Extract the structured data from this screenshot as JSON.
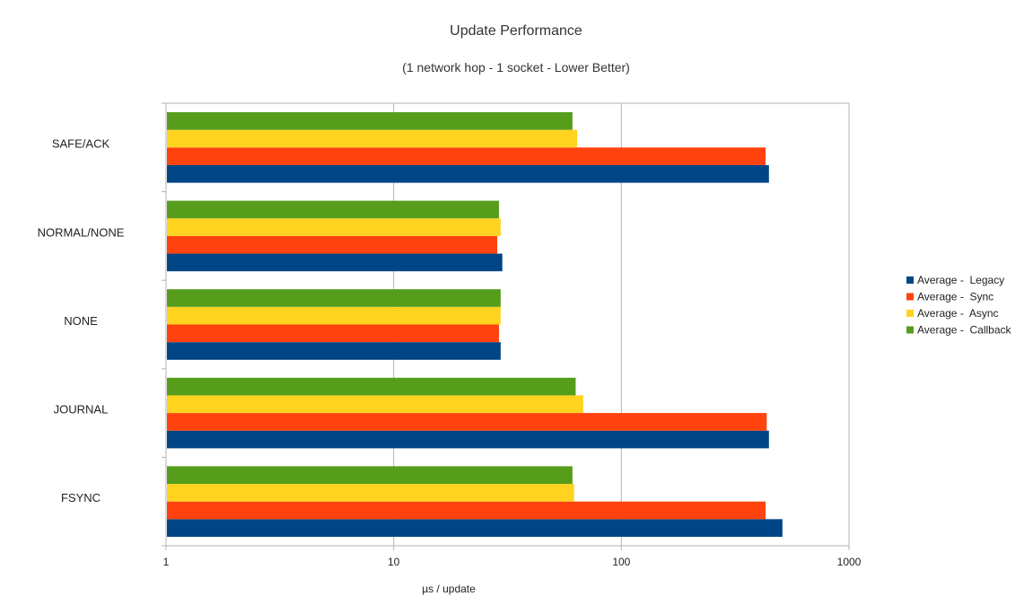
{
  "chart_data": {
    "type": "bar",
    "orientation": "horizontal",
    "title": "Update Performance",
    "subtitle": "(1 network hop - 1 socket - Lower Better)",
    "xlabel": "µs / update",
    "ylabel": "",
    "x_scale": "log",
    "xlim": [
      1,
      1000
    ],
    "x_ticks": [
      "1",
      "10",
      "100",
      "1000"
    ],
    "grid": true,
    "legend_position": "right",
    "categories": [
      "SAFE/ACK",
      "NORMAL/NONE",
      "NONE",
      "JOURNAL",
      "FSYNC"
    ],
    "series": [
      {
        "name": "Average -  Legacy",
        "color": "#004586",
        "values": [
          445,
          30,
          29.5,
          445,
          510
        ]
      },
      {
        "name": "Average -  Sync",
        "color": "#ff420e",
        "values": [
          430,
          28.5,
          29,
          435,
          430
        ]
      },
      {
        "name": "Average -  Async",
        "color": "#ffd320",
        "values": [
          64,
          29.5,
          29.5,
          68,
          62
        ]
      },
      {
        "name": "Average -  Callback",
        "color": "#579d1c",
        "values": [
          61,
          29,
          29.5,
          63,
          61
        ]
      }
    ]
  }
}
